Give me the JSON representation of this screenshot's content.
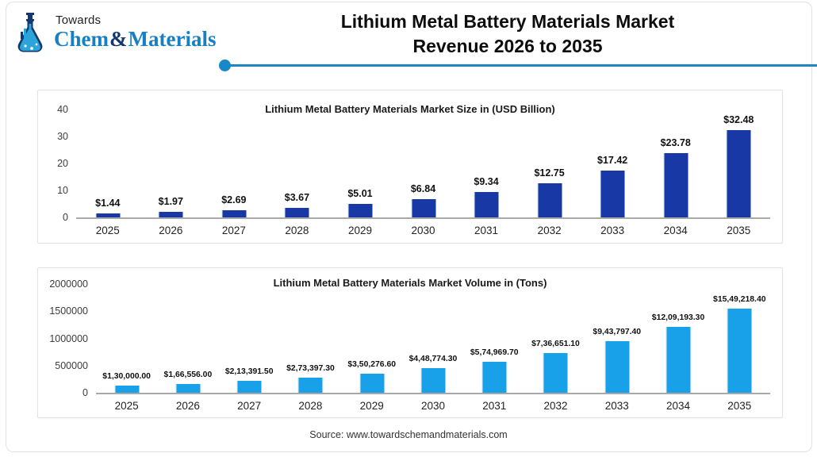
{
  "logo": {
    "towards": "Towards",
    "brand_chem": "Chem",
    "brand_amp": "&",
    "brand_materials": "Materials"
  },
  "header": {
    "title_line1": "Lithium Metal Battery Materials Market",
    "title_line2": "Revenue 2026 to 2035"
  },
  "source": "Source: www.towardschemandmaterials.com",
  "colors": {
    "accent_line": "#1e86c2",
    "accent_dot": "#1789c8",
    "navy_bar": "#1838a6",
    "sky_bar": "#18a0e8",
    "brand_blue": "#177fc3",
    "brand_navy": "#14386e"
  },
  "chart_data": [
    {
      "type": "bar",
      "title": "Lithium Metal Battery Materials Market Size in (USD Billion)",
      "categories": [
        "2025",
        "2026",
        "2027",
        "2028",
        "2029",
        "2030",
        "2031",
        "2032",
        "2033",
        "2034",
        "2035"
      ],
      "values": [
        1.44,
        1.97,
        2.69,
        3.67,
        5.01,
        6.84,
        9.34,
        12.75,
        17.42,
        23.78,
        32.48
      ],
      "labels": [
        "$1.44",
        "$1.97",
        "$2.69",
        "$3.67",
        "$5.01",
        "$6.84",
        "$9.34",
        "$12.75",
        "$17.42",
        "$23.78",
        "$32.48"
      ],
      "yticks": [
        "40",
        "30",
        "20",
        "10",
        "0"
      ],
      "ylim": [
        0,
        40
      ],
      "xlabel": "",
      "ylabel": "USD Billion",
      "bar_color": "#1838a6",
      "grid": false,
      "legend": "none"
    },
    {
      "type": "bar",
      "title": "Lithium Metal Battery Materials Market Volume in (Tons)",
      "categories": [
        "2025",
        "2026",
        "2027",
        "2028",
        "2029",
        "2030",
        "2031",
        "2032",
        "2033",
        "2034",
        "2035"
      ],
      "values": [
        130000.0,
        166556.0,
        213391.5,
        273397.3,
        350276.6,
        448774.3,
        574969.7,
        736651.1,
        943797.4,
        1209193.3,
        1549218.4
      ],
      "labels": [
        "$1,30,000.00",
        "$1,66,556.00",
        "$2,13,391.50",
        "$2,73,397.30",
        "$3,50,276.60",
        "$4,48,774.30",
        "$5,74,969.70",
        "$7,36,651.10",
        "$9,43,797.40",
        "$12,09,193.30",
        "$15,49,218.40"
      ],
      "yticks": [
        "2000000",
        "1500000",
        "1000000",
        "500000",
        "0"
      ],
      "ylim": [
        0,
        2000000
      ],
      "xlabel": "",
      "ylabel": "Tons",
      "bar_color": "#18a0e8",
      "grid": false,
      "legend": "none"
    }
  ]
}
